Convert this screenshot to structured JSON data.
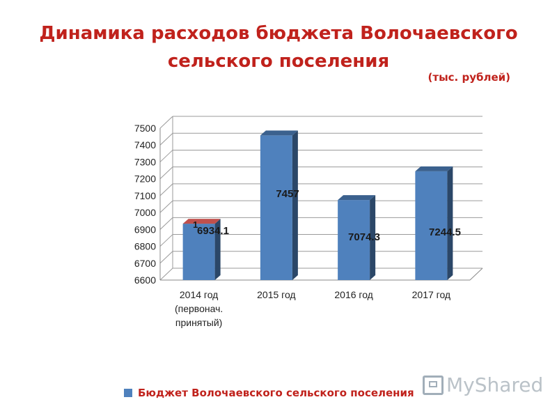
{
  "title_line1": "Динамика расходов бюджета Волочаевского",
  "title_line2": "сельского поселения",
  "units": "(тыс. рублей)",
  "watermark": "MyShared",
  "chart_data": {
    "type": "bar",
    "title": "Динамика расходов бюджета Волочаевского сельского поселения",
    "ylim": [
      6600,
      7500
    ],
    "yticks": [
      6600,
      6700,
      6800,
      6900,
      7000,
      7100,
      7200,
      7300,
      7400,
      7500
    ],
    "grid": true,
    "legend_position": "bottom",
    "categories": [
      [
        "2014 год",
        "(первонач.",
        "принятый)"
      ],
      [
        "2015 год"
      ],
      [
        "2016 год"
      ],
      [
        "2017 год"
      ]
    ],
    "series": [
      {
        "name": "Бюджет Волочаевского сельского поселения",
        "color": "#4f81bd",
        "values": [
          6934.1,
          7457,
          7074.3,
          7244.5
        ],
        "labels": [
          "6934.1",
          "7457",
          "7074.3",
          "7244.5"
        ]
      },
      {
        "name": "1",
        "color": "#c0504d",
        "values": [
          1,
          0,
          0,
          0
        ],
        "labels": [
          "1",
          "",
          "",
          ""
        ]
      }
    ]
  }
}
